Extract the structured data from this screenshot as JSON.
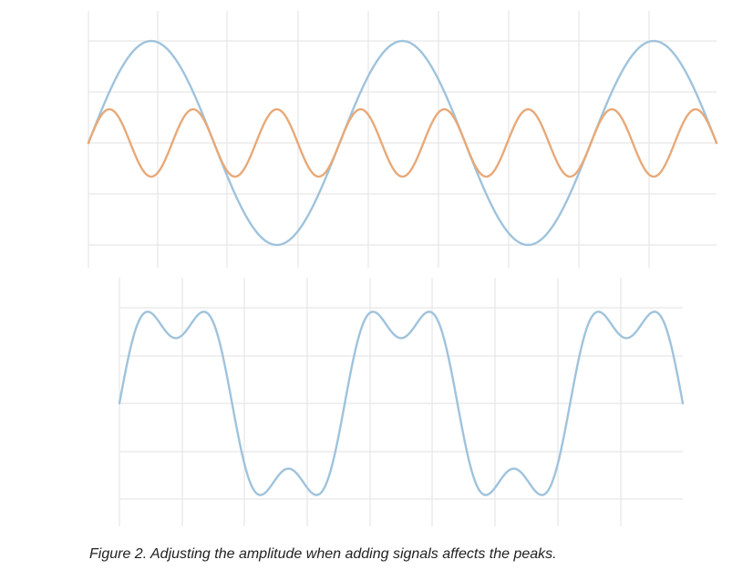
{
  "chart_data": [
    {
      "type": "line",
      "series": [
        {
          "function": "sine",
          "amplitude": 1.0,
          "cycles": 2.5,
          "phase_cycles": 0,
          "color": "#9fc3dc"
        },
        {
          "function": "sine",
          "amplitude": 0.33,
          "cycles": 7.5,
          "phase_cycles": 0,
          "color": "#e8a978"
        }
      ],
      "ylim": [
        -1.2,
        1.2
      ],
      "grid": true
    },
    {
      "type": "line",
      "series": [
        {
          "function": "sum_sine",
          "components": [
            {
              "amplitude": 1.0,
              "cycles": 2.5
            },
            {
              "amplitude": 0.33,
              "cycles": 7.5
            }
          ],
          "color": "#9fc3dc"
        }
      ],
      "ylim": [
        -1.2,
        1.2
      ],
      "grid": true
    }
  ],
  "caption": "Figure 2. Adjusting the amplitude when adding signals affects the peaks.",
  "colors": {
    "grid": "#e6e6e6",
    "blue": "#9fc3dc",
    "orange": "#e8a978"
  }
}
